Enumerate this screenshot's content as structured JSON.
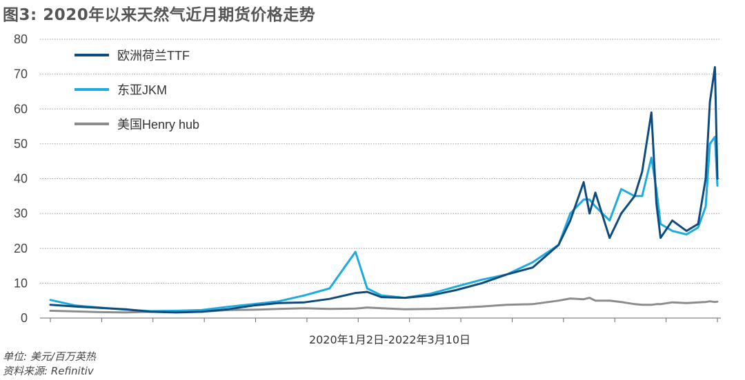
{
  "title": "图3: 2020年以来天然气近月期货价格走势",
  "unit_note": "单位: 美元/百万英热",
  "source_note": "资料来源: Refinitiv",
  "colors": {
    "ttf": "#0d4a7e",
    "jkm": "#1aabdf",
    "henry_hub": "#8c8c8c",
    "grid": "#9a9a9a",
    "axis": "#666666"
  },
  "chart_data": {
    "type": "line",
    "title": "图3: 2020年以来天然气近月期货价格走势",
    "xlabel": "2020年1月2日-2022年3月10日",
    "ylabel": "",
    "ylim": [
      0,
      80
    ],
    "yticks": [
      0,
      10,
      20,
      30,
      40,
      50,
      60,
      70,
      80
    ],
    "grid": "horizontal dotted",
    "legend_placement": "top-left",
    "x_start": "2020-01-02",
    "x_end": "2022-03-10",
    "x": [
      "2020-01-02",
      "2020-02-01",
      "2020-03-01",
      "2020-04-01",
      "2020-05-01",
      "2020-06-01",
      "2020-07-01",
      "2020-08-01",
      "2020-09-01",
      "2020-10-01",
      "2020-11-01",
      "2020-12-01",
      "2021-01-01",
      "2021-01-15",
      "2021-02-01",
      "2021-03-01",
      "2021-04-01",
      "2021-05-01",
      "2021-06-01",
      "2021-07-01",
      "2021-08-01",
      "2021-09-01",
      "2021-09-15",
      "2021-10-01",
      "2021-10-08",
      "2021-10-15",
      "2021-11-01",
      "2021-11-15",
      "2021-12-01",
      "2021-12-10",
      "2021-12-21",
      "2021-12-27",
      "2022-01-01",
      "2022-01-15",
      "2022-02-01",
      "2022-02-15",
      "2022-02-24",
      "2022-03-01",
      "2022-03-07",
      "2022-03-10"
    ],
    "series": [
      {
        "name": "欧洲荷兰TTF",
        "values": [
          3.8,
          3.3,
          2.9,
          2.5,
          1.8,
          1.6,
          1.8,
          2.5,
          3.6,
          4.3,
          4.5,
          5.5,
          7.2,
          7.5,
          6.0,
          5.8,
          6.5,
          8.0,
          10.0,
          12.5,
          14.5,
          21.0,
          28.0,
          39.0,
          30.0,
          36.0,
          23.0,
          30.0,
          35.0,
          42.0,
          59.0,
          33.0,
          23.0,
          28.0,
          25.0,
          27.0,
          40.0,
          62.0,
          72.0,
          40.0
        ]
      },
      {
        "name": "东亚JKM",
        "values": [
          5.2,
          3.6,
          3.0,
          2.4,
          2.0,
          2.1,
          2.3,
          3.2,
          4.0,
          4.8,
          6.5,
          8.5,
          19.0,
          8.5,
          6.5,
          5.8,
          7.0,
          9.0,
          11.0,
          12.5,
          16.0,
          21.0,
          30.0,
          34.0,
          34.0,
          32.0,
          28.0,
          37.0,
          35.0,
          35.0,
          46.0,
          37.0,
          27.0,
          25.0,
          24.0,
          26.0,
          32.0,
          50.0,
          52.0,
          38.0
        ]
      },
      {
        "name": "美国Henry hub",
        "values": [
          2.1,
          1.9,
          1.7,
          1.6,
          1.8,
          1.7,
          1.8,
          2.3,
          2.4,
          2.6,
          2.8,
          2.6,
          2.7,
          3.0,
          2.8,
          2.5,
          2.6,
          2.9,
          3.3,
          3.8,
          4.0,
          5.0,
          5.6,
          5.4,
          5.8,
          5.0,
          5.0,
          4.6,
          4.0,
          3.8,
          3.8,
          4.0,
          4.0,
          4.5,
          4.3,
          4.5,
          4.6,
          4.8,
          4.6,
          4.7
        ]
      }
    ]
  }
}
